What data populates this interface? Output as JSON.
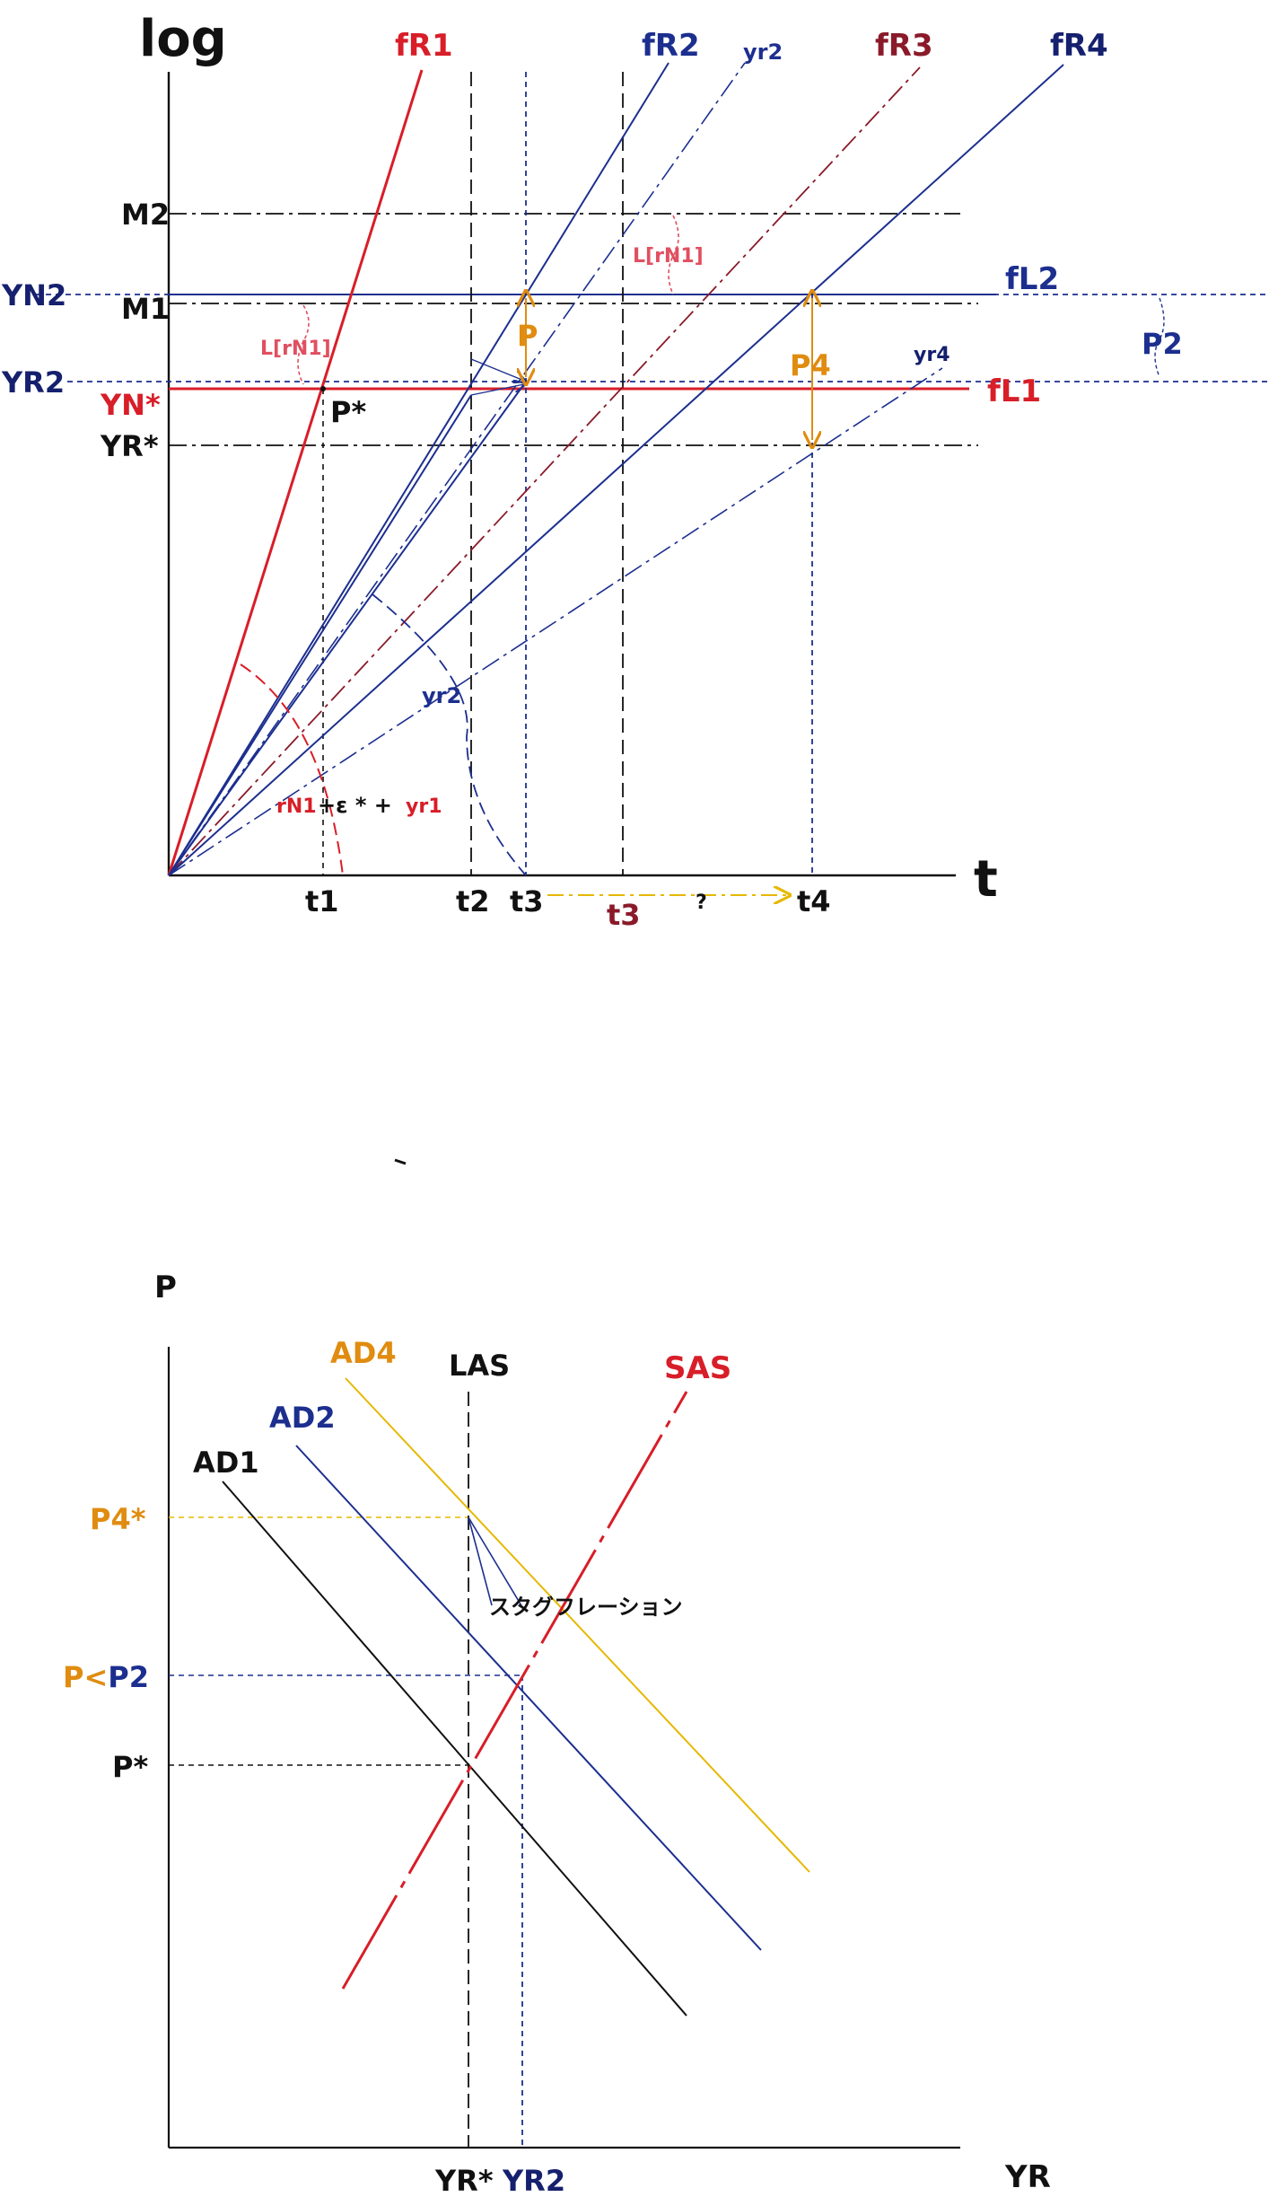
{
  "colors": {
    "black": "#111111",
    "red": "#d81e28",
    "blue": "#1c2f8f",
    "dark_blue": "#15206e",
    "maroon": "#8a1a2a",
    "orange": "#e08c10",
    "yellow": "#e6b800",
    "pale_red": "#e05060"
  },
  "top": {
    "y_axis_label": "log",
    "x_axis_label": "t",
    "curves": {
      "fR1": "fR1",
      "fR2": "fR2",
      "fR3": "fR3",
      "fR4": "fR4",
      "yr2_top": "yr2",
      "yr2_mid": "yr2",
      "yr4": "yr4",
      "fL1": "fL1",
      "fL2": "fL2"
    },
    "levels": {
      "M2": "M2",
      "M1": "M1",
      "YN2": "YN2",
      "YR2": "YR2",
      "YN_star": "YN*",
      "YR_star": "YR*"
    },
    "points": {
      "P_star": "P*",
      "P": "P",
      "P4": "P4",
      "P2": "P2"
    },
    "annotations": {
      "L_rN1_left": "L[rN1]",
      "L_rN1_right": "L[rN1]",
      "eq_rN1": "rN1",
      "eq_mid": "+ε * +",
      "eq_yr1": "yr1",
      "question": "?"
    },
    "times": {
      "t1": "t1",
      "t2": "t2",
      "t3": "t3",
      "t3b": "t3",
      "t4": "t4"
    }
  },
  "bottom": {
    "y_axis_label": "P",
    "x_axis_label": "YR",
    "curves": {
      "AD1": "AD1",
      "AD2": "AD2",
      "AD4": "AD4",
      "LAS": "LAS",
      "SAS": "SAS"
    },
    "price_levels": {
      "P4_star": "P4*",
      "P_part1": "P<",
      "P_part2": "P2",
      "P_star": "P*"
    },
    "note": "スタグフレーション",
    "x_ticks": {
      "YR_star": "YR*",
      "YR2": "YR2"
    }
  }
}
